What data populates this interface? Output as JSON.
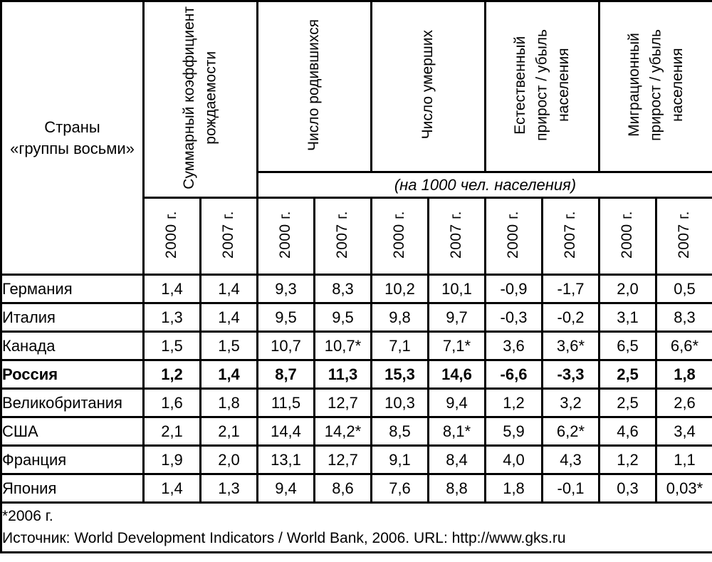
{
  "colors": {
    "ink": "#000000",
    "paper": "#ffffff"
  },
  "table": {
    "corner_header": "Страны\n«группы восьми»",
    "group_headers": [
      {
        "label": "Суммарный коэффициент\nрождаемости"
      },
      {
        "label": "Число родившихся"
      },
      {
        "label": "Число умерших"
      },
      {
        "label": "Естественный\nприрост / убыль\nнаселения"
      },
      {
        "label": "Миграционный\nприрост / убыль\nнаселения"
      }
    ],
    "unit_note": "(на 1000 чел. населения)",
    "years": [
      "2000 г.",
      "2007 г.",
      "2000 г.",
      "2007 г.",
      "2000 г.",
      "2007 г.",
      "2000 г.",
      "2007 г.",
      "2000 г.",
      "2007 г."
    ],
    "rows": [
      {
        "country": "Германия",
        "bold": false,
        "values": [
          "1,4",
          "1,4",
          "9,3",
          "8,3",
          "10,2",
          "10,1",
          "-0,9",
          "-1,7",
          "2,0",
          "0,5"
        ]
      },
      {
        "country": "Италия",
        "bold": false,
        "values": [
          "1,3",
          "1,4",
          "9,5",
          "9,5",
          "9,8",
          "9,7",
          "-0,3",
          "-0,2",
          "3,1",
          "8,3"
        ]
      },
      {
        "country": "Канада",
        "bold": false,
        "values": [
          "1,5",
          "1,5",
          "10,7",
          "10,7*",
          "7,1",
          "7,1*",
          "3,6",
          "3,6*",
          "6,5",
          "6,6*"
        ]
      },
      {
        "country": "Россия",
        "bold": true,
        "values": [
          "1,2",
          "1,4",
          "8,7",
          "11,3",
          "15,3",
          "14,6",
          "-6,6",
          "-3,3",
          "2,5",
          "1,8"
        ]
      },
      {
        "country": "Великобритания",
        "bold": false,
        "values": [
          "1,6",
          "1,8",
          "11,5",
          "12,7",
          "10,3",
          "9,4",
          "1,2",
          "3,2",
          "2,5",
          "2,6"
        ]
      },
      {
        "country": "США",
        "bold": false,
        "values": [
          "2,1",
          "2,1",
          "14,4",
          "14,2*",
          "8,5",
          "8,1*",
          "5,9",
          "6,2*",
          "4,6",
          "3,4"
        ]
      },
      {
        "country": "Франция",
        "bold": false,
        "values": [
          "1,9",
          "2,0",
          "13,1",
          "12,7",
          "9,1",
          "8,4",
          "4,0",
          "4,3",
          "1,2",
          "1,1"
        ]
      },
      {
        "country": "Япония",
        "bold": false,
        "values": [
          "1,4",
          "1,3",
          "9,4",
          "8,6",
          "7,6",
          "8,8",
          "1,8",
          "-0,1",
          "0,3",
          "0,03*"
        ]
      }
    ],
    "footnote": "*2006 г.",
    "source": "Источник: World Development Indicators / World Bank, 2006. URL: http://www.gks.ru"
  }
}
